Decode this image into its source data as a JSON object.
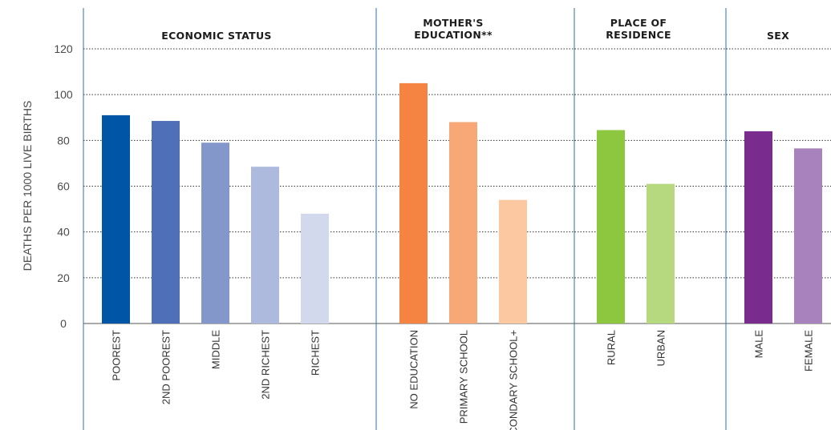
{
  "chart_data": {
    "type": "bar",
    "ylabel": "DEATHS PER 1000 LIVE BIRTHS",
    "ylim": [
      0,
      120
    ],
    "yticks": [
      "0",
      "20",
      "40",
      "60",
      "80",
      "100",
      "120"
    ],
    "grid": true,
    "groups": [
      {
        "title_lines": [
          "ECONOMIC STATUS"
        ],
        "bars": [
          {
            "category": "POOREST",
            "value": 91,
            "color": "#0055a6"
          },
          {
            "category": "2ND POOREST",
            "value": 88.5,
            "color": "#4f70b9"
          },
          {
            "category": "MIDDLE",
            "value": 79,
            "color": "#8497ca"
          },
          {
            "category": "2ND RICHEST",
            "value": 68.5,
            "color": "#aeb9de"
          },
          {
            "category": "RICHEST",
            "value": 48,
            "color": "#d3d9ed"
          }
        ]
      },
      {
        "title_lines": [
          "MOTHER'S",
          "EDUCATION**"
        ],
        "bars": [
          {
            "category": "NO EDUCATION",
            "value": 105,
            "color": "#f58442"
          },
          {
            "category": "PRIMARY SCHOOL",
            "value": 88,
            "color": "#f8a877"
          },
          {
            "category": "SECONDARY SCHOOL+",
            "value": 54,
            "color": "#fcc8a2"
          }
        ]
      },
      {
        "title_lines": [
          "PLACE OF",
          "RESIDENCE"
        ],
        "bars": [
          {
            "category": "RURAL",
            "value": 84.5,
            "color": "#8dc63f"
          },
          {
            "category": "URBAN",
            "value": 61,
            "color": "#b6d97f"
          }
        ]
      },
      {
        "title_lines": [
          "SEX"
        ],
        "bars": [
          {
            "category": "MALE",
            "value": 84,
            "color": "#7a2c8e"
          },
          {
            "category": "FEMALE",
            "value": 76.5,
            "color": "#a882bd"
          }
        ]
      }
    ]
  }
}
